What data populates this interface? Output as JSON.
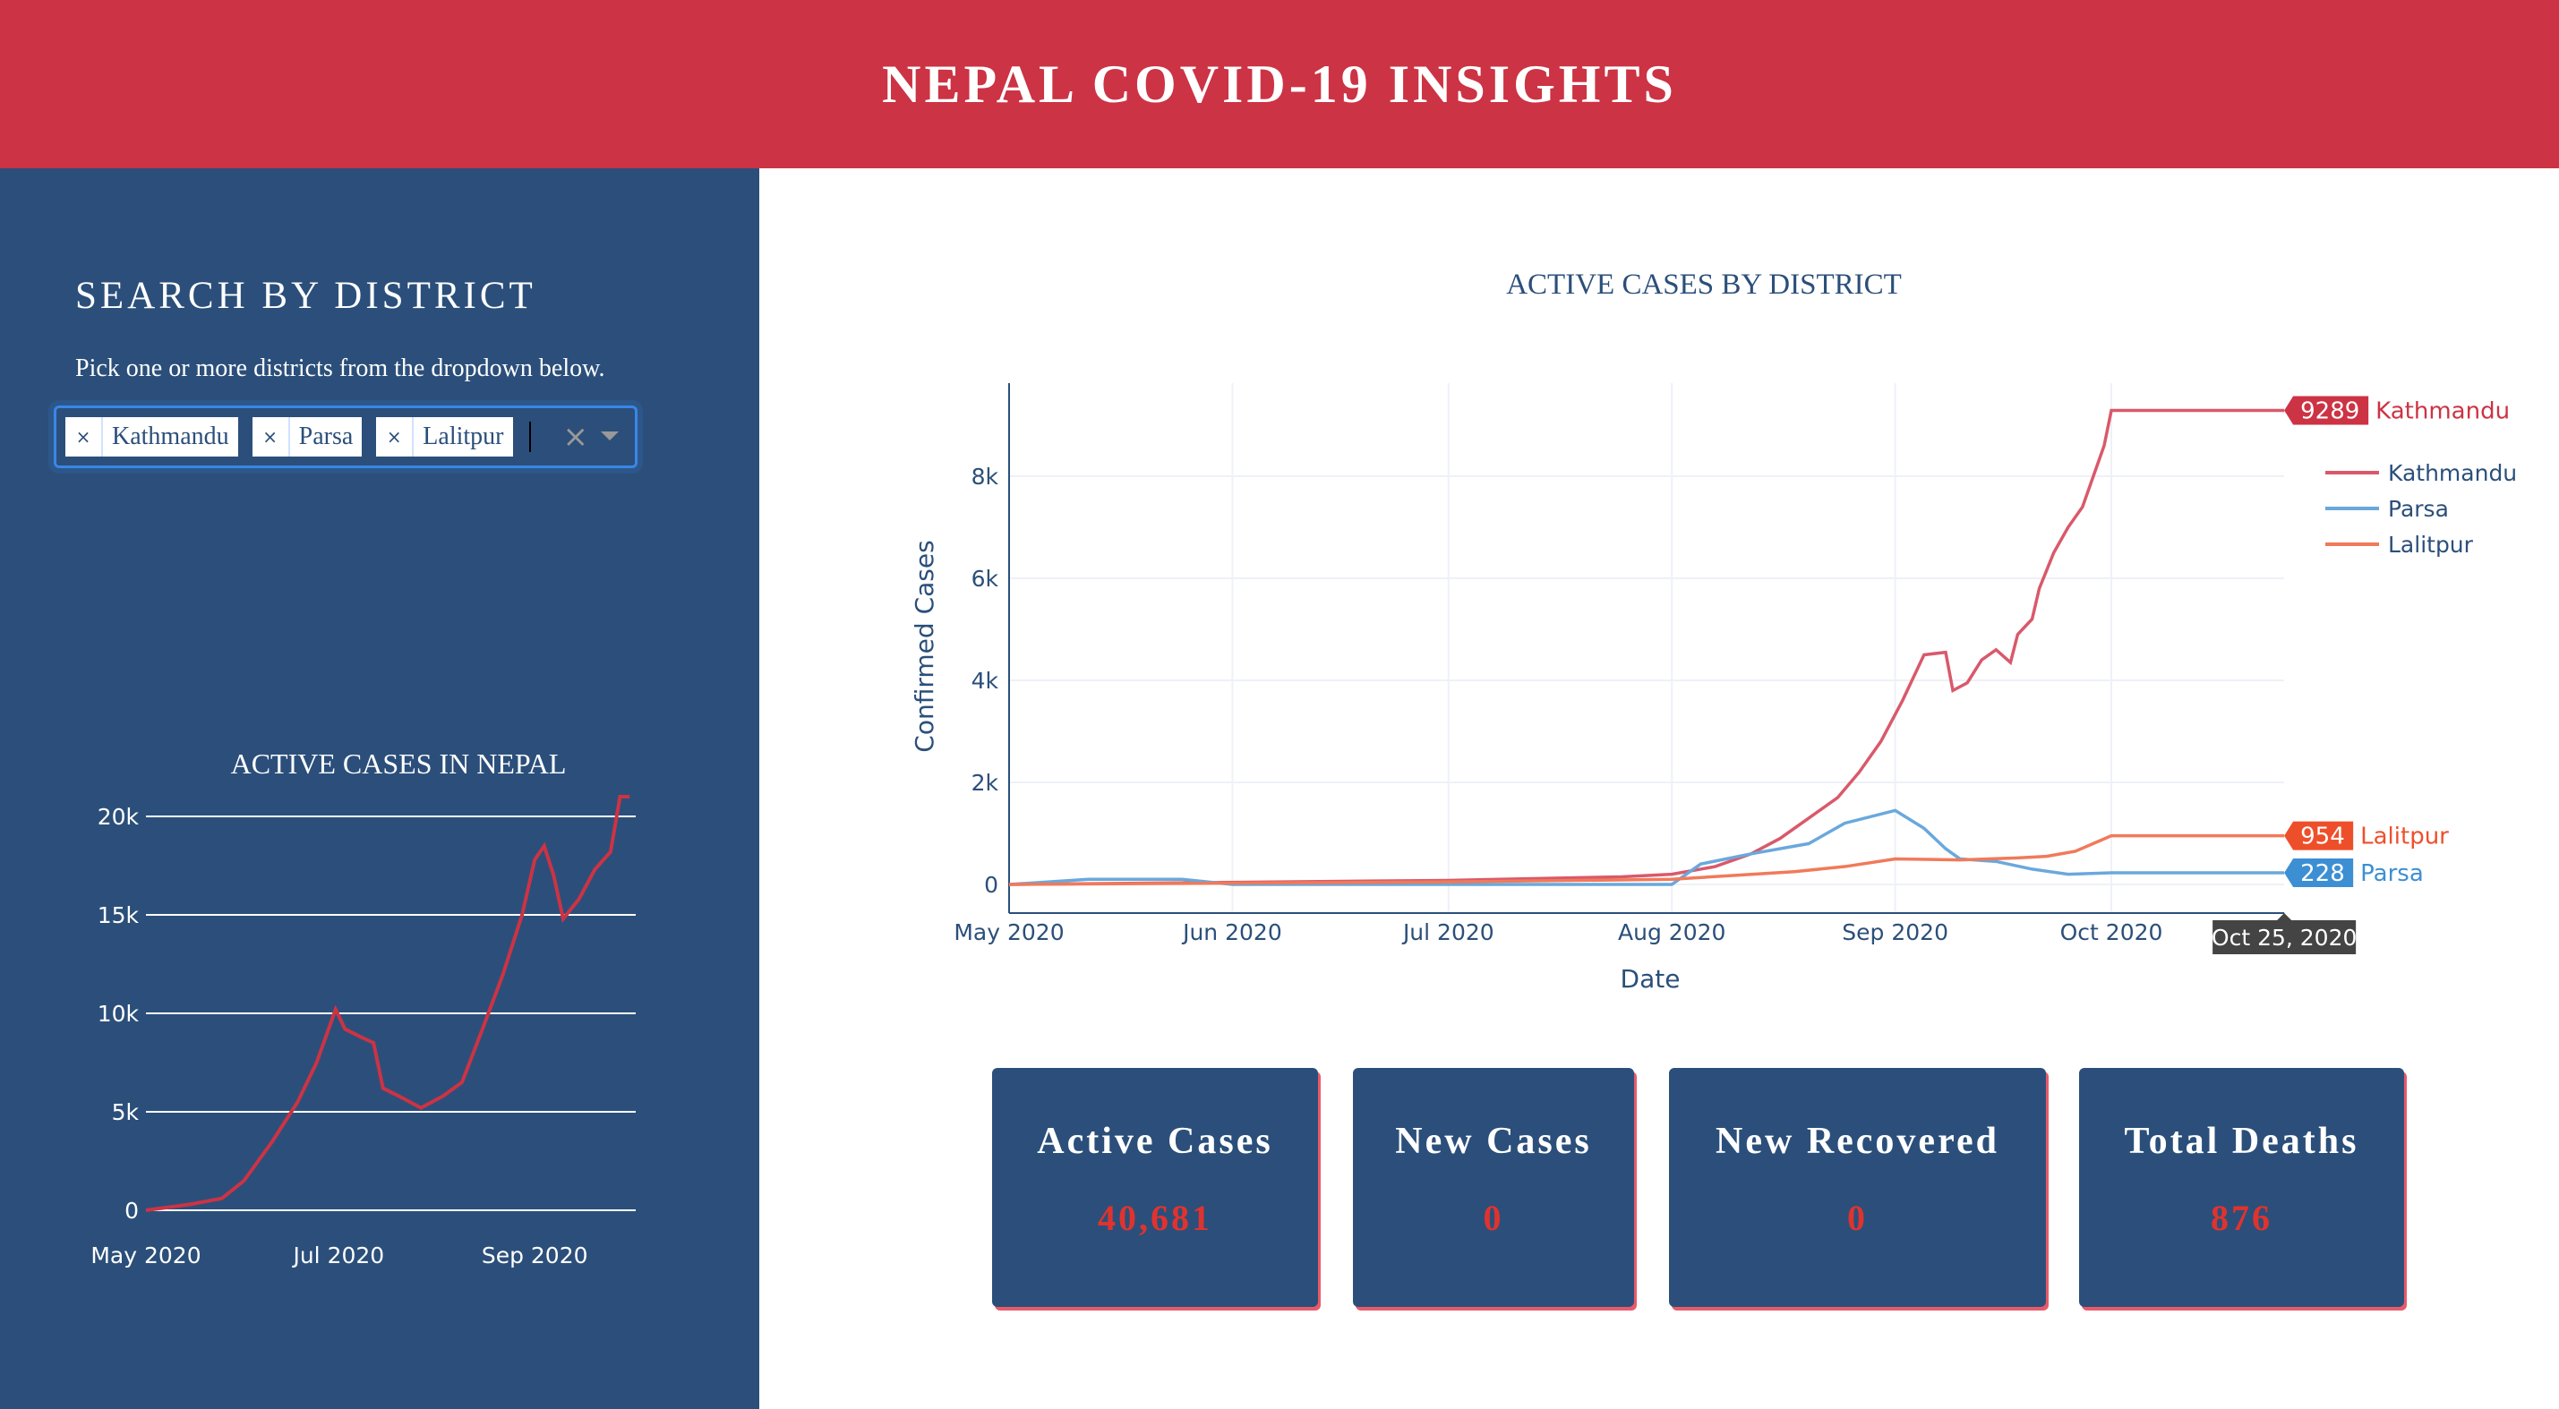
{
  "header": {
    "title": "NEPAL COVID-19 INSIGHTS"
  },
  "sidebar": {
    "title": "SEARCH BY DISTRICT",
    "subtitle": "Pick one or more districts from the dropdown below.",
    "dropdown": {
      "selected": [
        "Kathmandu",
        "Parsa",
        "Lalitpur"
      ],
      "remove_icon": "×",
      "clear_icon": "×"
    }
  },
  "colors": {
    "header": "#cc3344",
    "sidebar": "#2b4f7a",
    "kathmandu": "#d9596b",
    "parsa": "#6aa8dc",
    "lalitpur": "#f07a5a",
    "nepal": "#cc3344"
  },
  "chart_data": [
    {
      "type": "line",
      "title": "ACTIVE CASES IN NEPAL",
      "xlabel": "",
      "ylabel": "",
      "x_ticks": [
        "May 2020",
        "Jul 2020",
        "Sep 2020"
      ],
      "y_ticks": [
        "0",
        "5k",
        "10k",
        "15k",
        "20k"
      ],
      "ylim": [
        0,
        20000
      ],
      "grid": true,
      "series": [
        {
          "x": [
            "2020-05-01",
            "2020-05-15",
            "2020-05-25",
            "2020-06-01",
            "2020-06-10",
            "2020-06-18",
            "2020-06-24",
            "2020-06-30",
            "2020-07-03",
            "2020-07-08",
            "2020-07-12",
            "2020-07-15",
            "2020-07-20",
            "2020-07-27",
            "2020-08-03",
            "2020-08-09",
            "2020-08-15",
            "2020-08-22",
            "2020-08-28",
            "2020-09-01",
            "2020-09-04",
            "2020-09-07",
            "2020-09-10",
            "2020-09-15",
            "2020-09-20",
            "2020-09-25",
            "2020-09-28",
            "2020-10-01"
          ],
          "y": [
            0,
            300,
            600,
            1500,
            3500,
            5500,
            7500,
            10200,
            9200,
            8800,
            8500,
            6200,
            5800,
            5200,
            5800,
            6500,
            9000,
            12000,
            15000,
            17800,
            18500,
            17000,
            14800,
            15800,
            17300,
            18200,
            21000,
            21000
          ]
        }
      ]
    },
    {
      "type": "line",
      "title": "ACTIVE CASES BY DISTRICT",
      "xlabel": "Date",
      "ylabel": "Confirmed Cases",
      "x_ticks": [
        "May 2020",
        "Jun 2020",
        "Jul 2020",
        "Aug 2020",
        "Sep 2020",
        "Oct 2020"
      ],
      "y_ticks": [
        "0",
        "2k",
        "4k",
        "6k",
        "8k"
      ],
      "ylim": [
        -500,
        9800
      ],
      "grid": true,
      "legend": "top-right",
      "hover": {
        "date": "Oct 25, 2020",
        "labels": [
          {
            "series": "Kathmandu",
            "value": "9289"
          },
          {
            "series": "Lalitpur",
            "value": "954"
          },
          {
            "series": "Parsa",
            "value": "228"
          }
        ]
      },
      "series": [
        {
          "name": "Kathmandu",
          "x": [
            "2020-05-01",
            "2020-07-01",
            "2020-07-25",
            "2020-08-01",
            "2020-08-07",
            "2020-08-12",
            "2020-08-16",
            "2020-08-20",
            "2020-08-24",
            "2020-08-27",
            "2020-08-30",
            "2020-09-02",
            "2020-09-05",
            "2020-09-08",
            "2020-09-09",
            "2020-09-11",
            "2020-09-13",
            "2020-09-15",
            "2020-09-17",
            "2020-09-18",
            "2020-09-20",
            "2020-09-21",
            "2020-09-23",
            "2020-09-25",
            "2020-09-27",
            "2020-09-30",
            "2020-10-01",
            "2020-10-25"
          ],
          "y": [
            0,
            80,
            150,
            200,
            350,
            600,
            900,
            1300,
            1700,
            2200,
            2800,
            3600,
            4500,
            4550,
            3800,
            3950,
            4400,
            4600,
            4350,
            4900,
            5200,
            5800,
            6500,
            7000,
            7400,
            8600,
            9289,
            9289
          ]
        },
        {
          "name": "Parsa",
          "x": [
            "2020-05-01",
            "2020-05-12",
            "2020-05-25",
            "2020-06-01",
            "2020-08-01",
            "2020-08-05",
            "2020-08-12",
            "2020-08-20",
            "2020-08-25",
            "2020-09-01",
            "2020-09-05",
            "2020-09-08",
            "2020-09-10",
            "2020-09-15",
            "2020-09-20",
            "2020-09-25",
            "2020-10-01",
            "2020-10-25"
          ],
          "y": [
            0,
            100,
            100,
            0,
            0,
            400,
            600,
            800,
            1200,
            1450,
            1100,
            700,
            500,
            450,
            300,
            200,
            228,
            228
          ]
        },
        {
          "name": "Lalitpur",
          "x": [
            "2020-05-01",
            "2020-07-01",
            "2020-08-01",
            "2020-08-10",
            "2020-08-18",
            "2020-08-25",
            "2020-09-01",
            "2020-09-10",
            "2020-09-18",
            "2020-09-22",
            "2020-09-26",
            "2020-10-01",
            "2020-10-25"
          ],
          "y": [
            0,
            50,
            100,
            180,
            250,
            350,
            500,
            480,
            520,
            550,
            650,
            954,
            954
          ]
        }
      ]
    }
  ],
  "cards": [
    {
      "title": "Active Cases",
      "value": "40,681"
    },
    {
      "title": "New Cases",
      "value": "0"
    },
    {
      "title": "New Recovered",
      "value": "0"
    },
    {
      "title": "Total Deaths",
      "value": "876"
    }
  ]
}
